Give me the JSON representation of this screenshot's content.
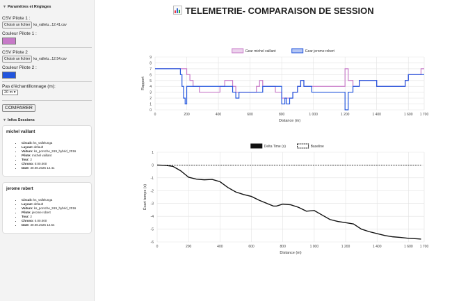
{
  "sidebar": {
    "settings_title": "Paramètres et Réglages",
    "csv1_label": "CSV Pilote 1 :",
    "file_btn": "Choisir un fichier",
    "csv1_file": "ks_vallelu...12.41.csv",
    "color1_label": "Couleur Pilote 1 :",
    "color1": "#c77ac8",
    "csv2_label": "CSV Pilote 2",
    "csv2_file": "ks_vallelu...12.54.csv",
    "color2_label": "Couleur Pilote 2 :",
    "color2": "#2255dd",
    "sampling_label": "Pas d'échantillonnage (m):",
    "sampling_value": "20 m ▾",
    "compare_btn": "COMPARER",
    "info_title": "Infos Sessions"
  },
  "sessions": [
    {
      "title": "michel vaillant",
      "items": [
        [
          "Circuit:",
          "ks_vallelunga"
        ],
        [
          "Layout:",
          "default"
        ],
        [
          "Voiture:",
          "ks_porsche_919_hybrid_2016"
        ],
        [
          "Pilote:",
          "michel vaillant"
        ],
        [
          "Tour:",
          "2"
        ],
        [
          "Chrono:",
          "0:00.000"
        ],
        [
          "Date:",
          "30.08.2025 12.41"
        ]
      ]
    },
    {
      "title": "jerome robert",
      "items": [
        [
          "Circuit:",
          "ks_vallelunga"
        ],
        [
          "Layout:",
          "default"
        ],
        [
          "Voiture:",
          "ks_porsche_919_hybrid_2016"
        ],
        [
          "Pilote:",
          "jerome robert"
        ],
        [
          "Tour:",
          "2"
        ],
        [
          "Chrono:",
          "0.00.000"
        ],
        [
          "Date:",
          "30.08.2025 12.54"
        ]
      ]
    }
  ],
  "main": {
    "title": "TELEMETRIE- COMPARAISON DE SESSION"
  },
  "chart_data": [
    {
      "type": "line",
      "xlabel": "Distance (m)",
      "ylabel": "Rapport",
      "xlim": [
        0,
        1700
      ],
      "ylim": [
        0,
        9
      ],
      "xticks": [
        0,
        200,
        400,
        600,
        800,
        1000,
        1200,
        1400,
        1600,
        1700
      ],
      "yticks": [
        0,
        1,
        2,
        3,
        4,
        5,
        6,
        7,
        8,
        9
      ],
      "grid": true,
      "legend": "top-center",
      "series": [
        {
          "name": "Gear michel vaillant",
          "color": "#c77ac8",
          "step": true,
          "x": [
            0,
            130,
            200,
            220,
            240,
            260,
            280,
            300,
            400,
            410,
            440,
            490,
            500,
            510,
            540,
            620,
            640,
            660,
            680,
            720,
            760,
            800,
            830,
            850,
            870,
            900,
            920,
            940,
            990,
            1010,
            1050,
            1170,
            1200,
            1220,
            1250,
            1290,
            1310,
            1330,
            1400,
            1510,
            1580,
            1600,
            1630,
            1680,
            1700
          ],
          "y": [
            7,
            7,
            6,
            5,
            4,
            4,
            3,
            3,
            3,
            4,
            5,
            4,
            4,
            3,
            3,
            3,
            4,
            5,
            4,
            4,
            3,
            2,
            2,
            2,
            3,
            4,
            5,
            4,
            4,
            4,
            4,
            4,
            7,
            5,
            4,
            5,
            5,
            5,
            4,
            4,
            5,
            6,
            6,
            7,
            7
          ]
        },
        {
          "name": "Gear jerome robert",
          "color": "#2255dd",
          "step": true,
          "x": [
            0,
            150,
            160,
            170,
            180,
            190,
            200,
            220,
            250,
            400,
            470,
            490,
            510,
            530,
            600,
            640,
            680,
            700,
            720,
            800,
            810,
            820,
            830,
            850,
            870,
            900,
            920,
            940,
            990,
            1010,
            1170,
            1200,
            1220,
            1250,
            1290,
            1310,
            1330,
            1400,
            1510,
            1580,
            1600,
            1630,
            1680,
            1700
          ],
          "y": [
            7,
            7,
            6,
            4,
            2,
            1,
            4,
            4,
            4,
            4,
            4,
            3,
            2,
            3,
            3,
            3,
            4,
            4,
            4,
            1,
            1,
            2,
            1,
            2,
            3,
            4,
            5,
            4,
            3,
            3,
            3,
            0,
            3,
            4,
            5,
            5,
            5,
            4,
            4,
            5,
            6,
            6,
            6,
            6
          ]
        }
      ]
    },
    {
      "type": "line",
      "xlabel": "Distance (m)",
      "ylabel": "Écart temps (s)",
      "xlim": [
        0,
        1700
      ],
      "ylim": [
        -6,
        1
      ],
      "xticks": [
        0,
        200,
        400,
        600,
        800,
        1000,
        1200,
        1400,
        1600,
        1700
      ],
      "yticks": [
        1,
        0,
        -1,
        -2,
        -3,
        -4,
        -5,
        -6
      ],
      "grid": true,
      "legend": "top-center",
      "series": [
        {
          "name": "Delta Time (s)",
          "color": "#111111",
          "x": [
            0,
            50,
            100,
            150,
            180,
            200,
            250,
            300,
            350,
            400,
            450,
            500,
            550,
            600,
            650,
            700,
            740,
            760,
            800,
            850,
            900,
            950,
            1000,
            1050,
            1100,
            1150,
            1200,
            1250,
            1300,
            1350,
            1400,
            1450,
            1500,
            1550,
            1600,
            1650,
            1680
          ],
          "y": [
            0,
            -0.02,
            -0.1,
            -0.45,
            -0.75,
            -0.95,
            -1.1,
            -1.15,
            -1.12,
            -1.3,
            -1.75,
            -2.1,
            -2.3,
            -2.45,
            -2.75,
            -3.0,
            -3.2,
            -3.2,
            -3.05,
            -3.1,
            -3.3,
            -3.6,
            -3.55,
            -3.9,
            -4.25,
            -4.4,
            -4.5,
            -4.6,
            -5.0,
            -5.2,
            -5.35,
            -5.5,
            -5.6,
            -5.65,
            -5.72,
            -5.75,
            -5.78
          ]
        },
        {
          "name": "Baseline",
          "color": "#111111",
          "dashed": true,
          "x": [
            0,
            1680
          ],
          "y": [
            0,
            0
          ]
        }
      ]
    }
  ]
}
